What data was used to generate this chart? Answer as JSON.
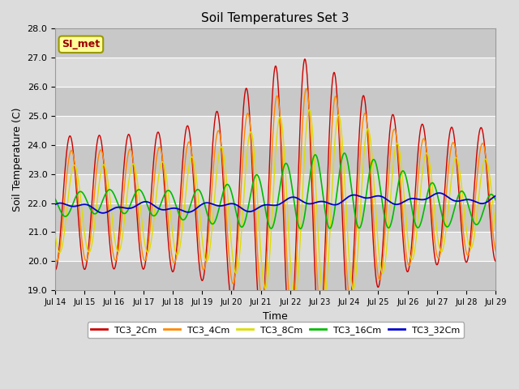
{
  "title": "Soil Temperatures Set 3",
  "xlabel": "Time",
  "ylabel": "Soil Temperature (C)",
  "xlim": [
    0,
    15
  ],
  "ylim": [
    19.0,
    28.0
  ],
  "yticks": [
    19.0,
    20.0,
    21.0,
    22.0,
    23.0,
    24.0,
    25.0,
    26.0,
    27.0,
    28.0
  ],
  "xtick_labels": [
    "Jul 14",
    "Jul 15",
    "Jul 16",
    "Jul 17",
    "Jul 18",
    "Jul 19",
    "Jul 20",
    "Jul 21",
    "Jul 22",
    "Jul 23",
    "Jul 24",
    "Jul 25",
    "Jul 26",
    "Jul 27",
    "Jul 28",
    "Jul 29"
  ],
  "legend_labels": [
    "TC3_2Cm",
    "TC3_4Cm",
    "TC3_8Cm",
    "TC3_16Cm",
    "TC3_32Cm"
  ],
  "line_colors": [
    "#cc0000",
    "#ff8800",
    "#dddd00",
    "#00bb00",
    "#0000cc"
  ],
  "bg_color": "#dcdcdc",
  "plot_bg": "#dcdcdc",
  "stripe_color": "#c8c8c8",
  "annotation_text": "SI_met",
  "annotation_color": "#990000",
  "annotation_bg": "#ffff99",
  "annotation_border": "#999900",
  "title_fontsize": 11,
  "axis_fontsize": 9,
  "tick_fontsize": 8,
  "legend_fontsize": 8,
  "linewidth": 1.0
}
